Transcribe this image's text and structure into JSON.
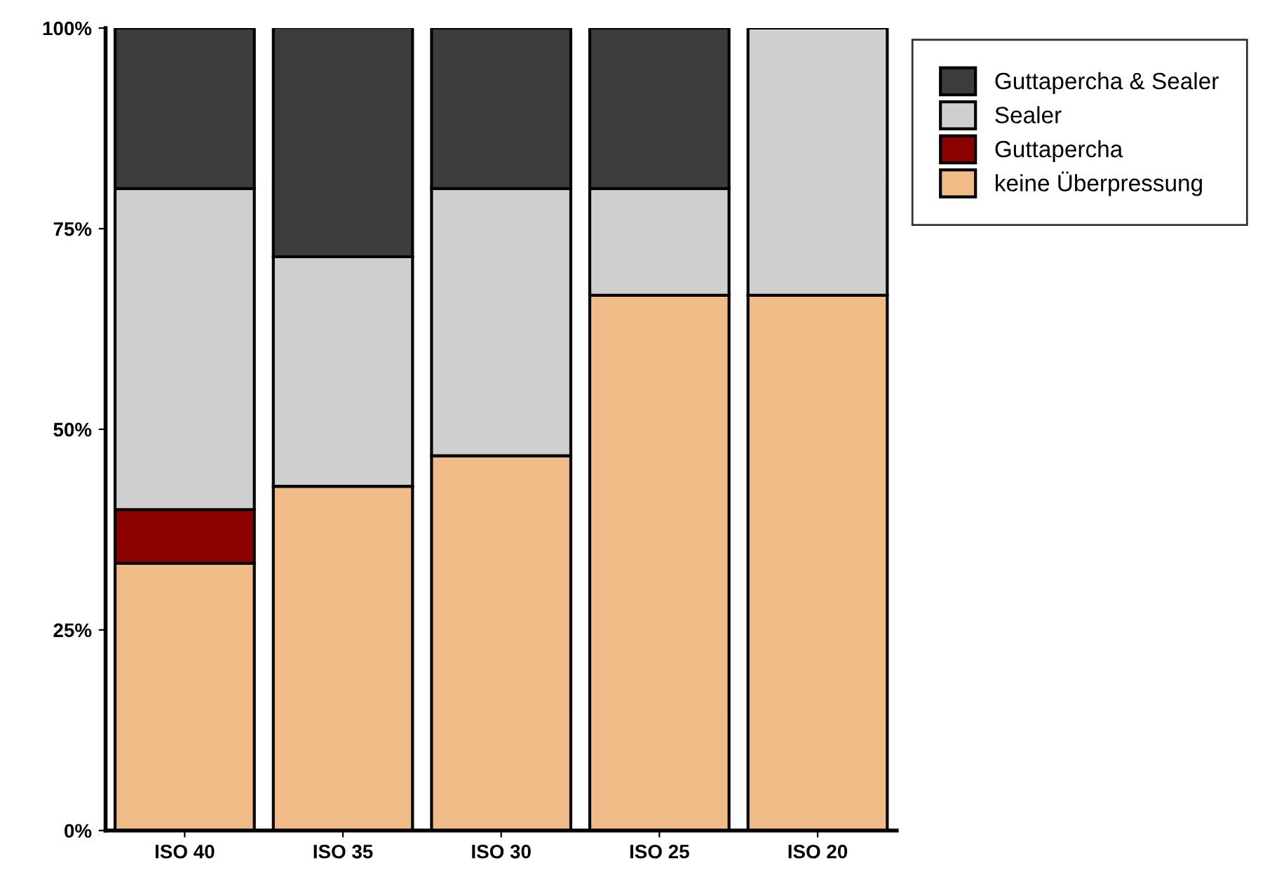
{
  "chart_data": {
    "type": "bar",
    "stacked": true,
    "categories": [
      "ISO 40",
      "ISO 35",
      "ISO 30",
      "ISO 25",
      "ISO 20"
    ],
    "series": [
      {
        "name": "keine Überpressung",
        "color": "#f0bb86",
        "values": [
          33.3,
          42.9,
          46.7,
          66.7,
          66.7
        ]
      },
      {
        "name": "Guttapercha",
        "color": "#8b0000",
        "values": [
          6.7,
          null,
          null,
          null,
          null
        ]
      },
      {
        "name": "Sealer",
        "color": "#cfcfcf",
        "values": [
          40,
          28.6,
          33.3,
          13.3,
          33.3
        ]
      },
      {
        "name": "Guttapercha & Sealer",
        "color": "#3c3c3c",
        "values": [
          20,
          28.6,
          20,
          20,
          null
        ]
      }
    ],
    "ylim": [
      0,
      100
    ],
    "yticks": [
      {
        "value": 0,
        "label": "0%"
      },
      {
        "value": 25,
        "label": "25%"
      },
      {
        "value": 50,
        "label": "50%"
      },
      {
        "value": 75,
        "label": "75%"
      },
      {
        "value": 100,
        "label": "100%"
      }
    ],
    "grid": false,
    "legend": "top right"
  }
}
